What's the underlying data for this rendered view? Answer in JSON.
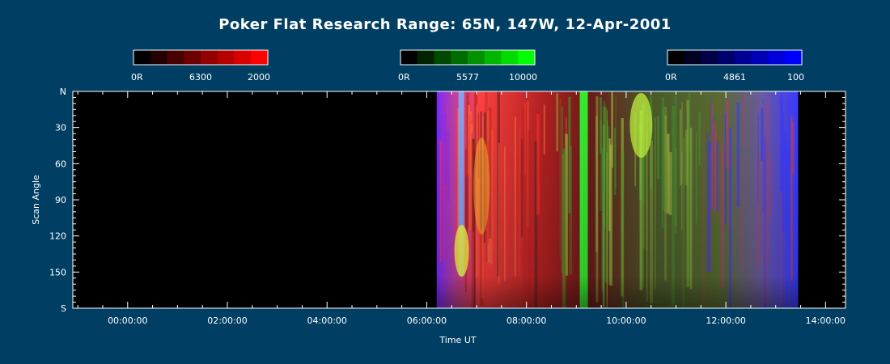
{
  "chart_data": {
    "type": "heatmap",
    "title": "Poker Flat Research Range: 65N, 147W, 12-Apr-2001",
    "xlabel": "Time UT",
    "ylabel": "Scan Angle",
    "x_ticks": [
      "00:00:00",
      "02:00:00",
      "04:00:00",
      "06:00:00",
      "08:00:00",
      "10:00:00",
      "12:00:00",
      "14:00:00"
    ],
    "y_ticks": [
      "N",
      "30",
      "60",
      "90",
      "120",
      "150",
      "S"
    ],
    "xlim_hours": [
      -1.1,
      14.4
    ],
    "ylim_deg": [
      0,
      180
    ],
    "colorbars": [
      {
        "wavelength": "6300",
        "min_label": "0R",
        "max_label": "2000",
        "color": "#ff0000"
      },
      {
        "wavelength": "5577",
        "min_label": "0R",
        "max_label": "10000",
        "color": "#00ff00"
      },
      {
        "wavelength": "4861",
        "min_label": "0R",
        "max_label": "100",
        "color": "#0000ff"
      }
    ],
    "data_start_hours": 6.2,
    "data_end_hours": 13.45,
    "features": [
      {
        "hours": 6.7,
        "description": ""
      },
      {
        "hours": 9.15,
        "description": ""
      }
    ]
  }
}
